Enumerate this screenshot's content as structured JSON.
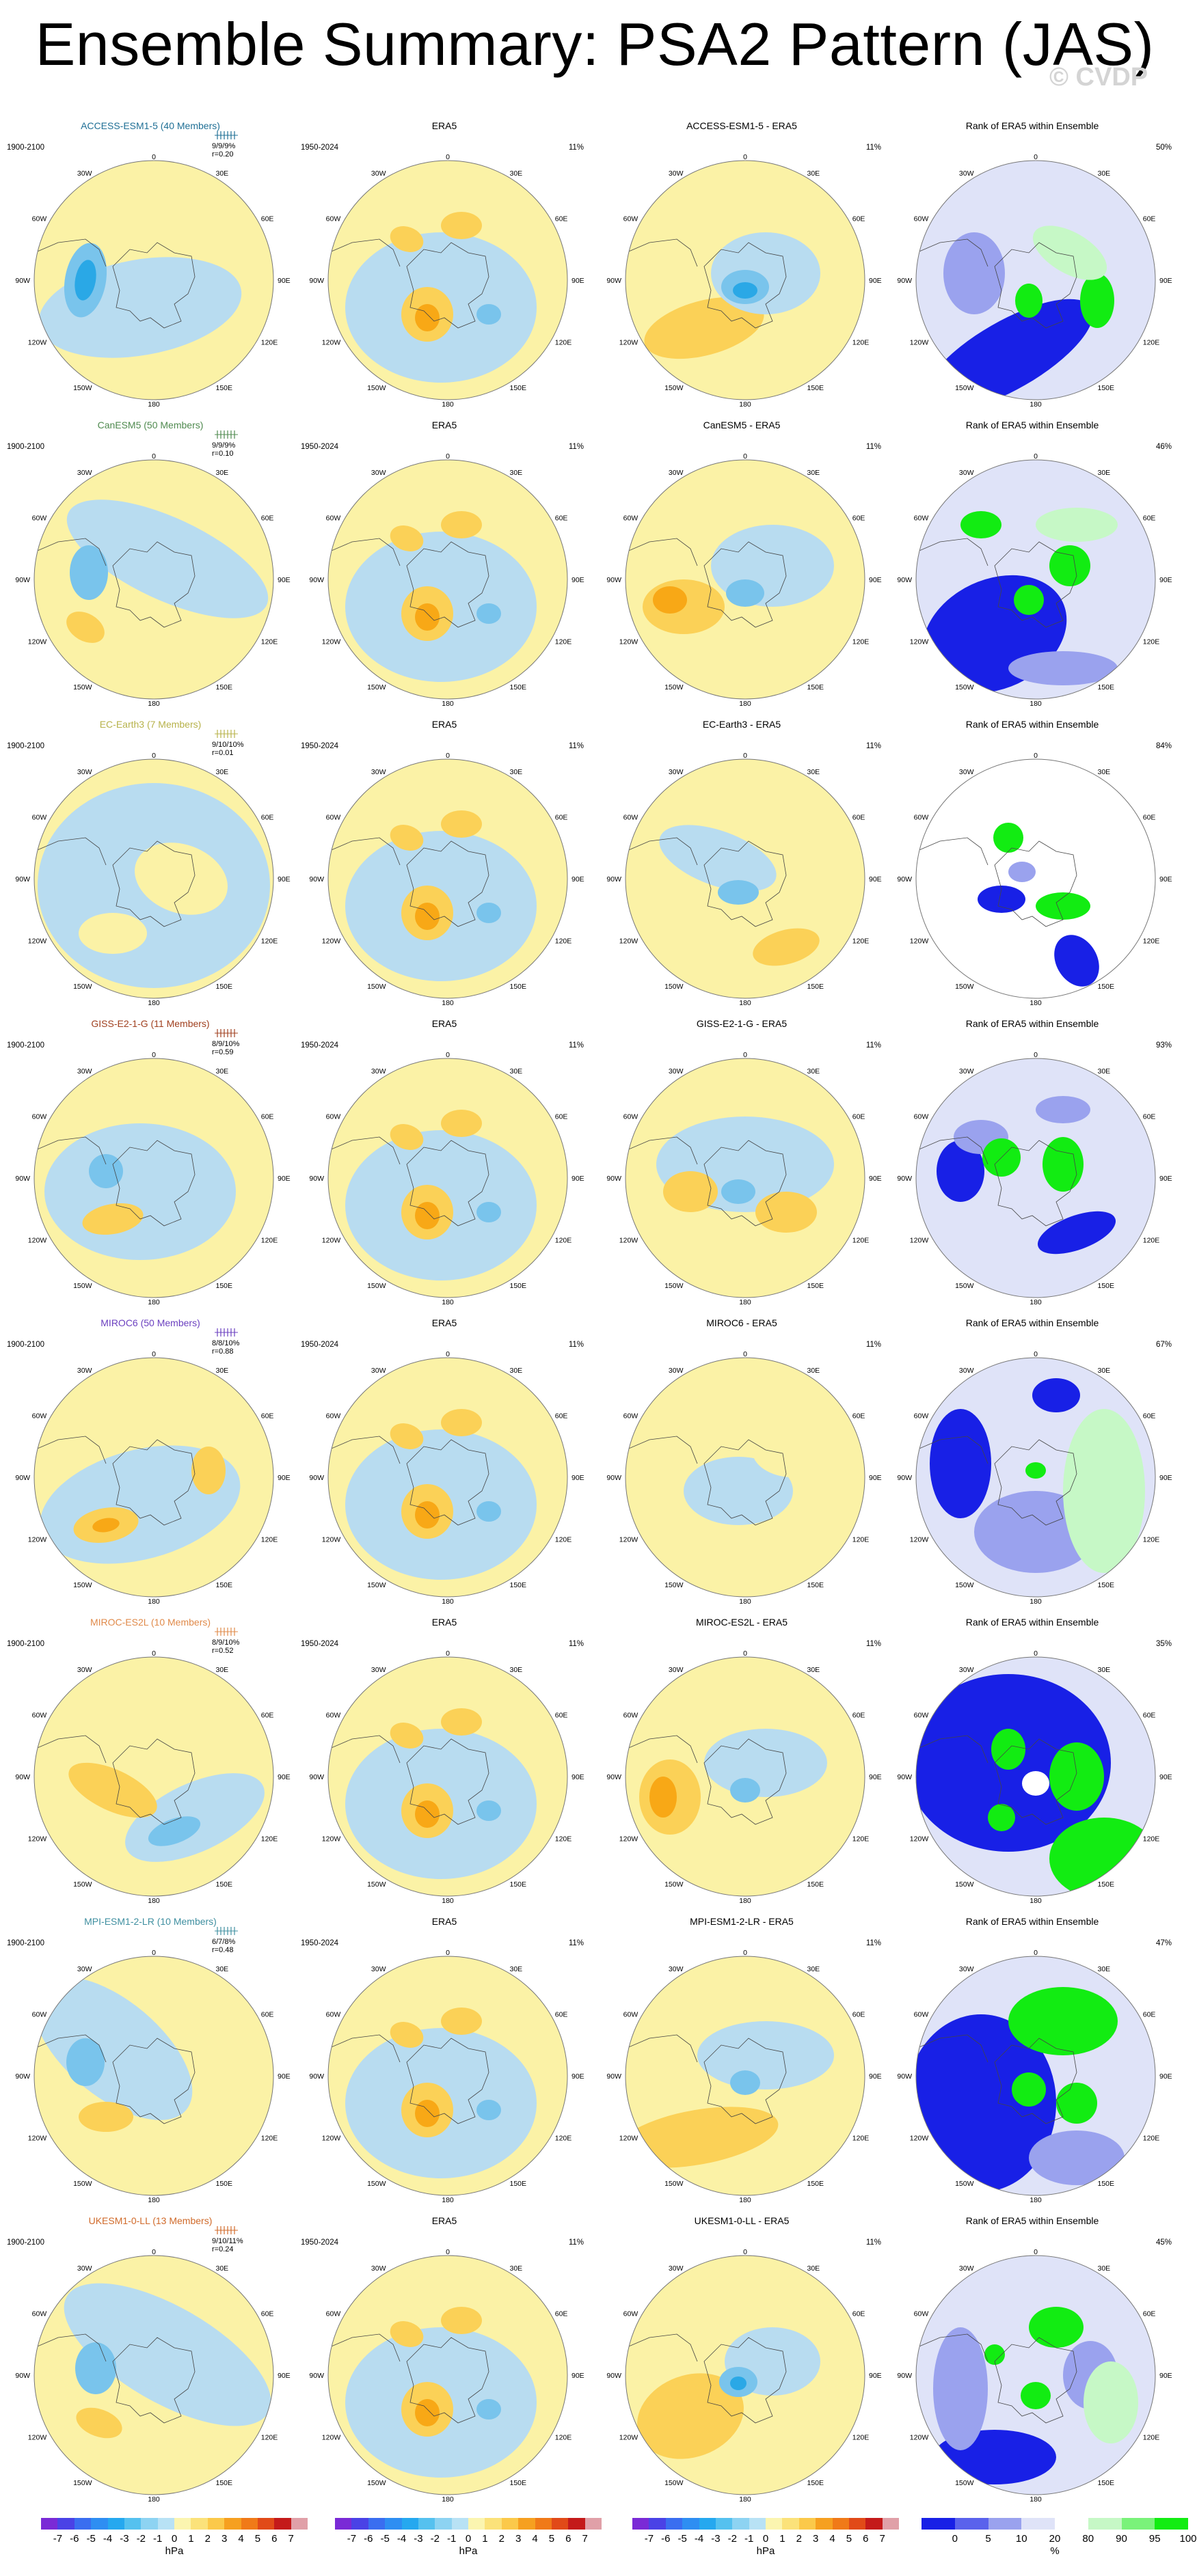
{
  "title": "Ensemble Summary: PSA2 Pattern (JAS)",
  "watermark": "© CVDP",
  "colors": {
    "neg_light": "#b8dcf0",
    "neg_mid": "#79c4ec",
    "neg_dark": "#2aa8e6",
    "pos_light": "#fbf2a6",
    "pos_mid": "#fbd157",
    "pos_dark": "#f8a816",
    "rank_dark": "#1820e6",
    "rank_mid": "#9aa2ee",
    "rank_light": "#dfe3f8",
    "rank_green": "#12ec12",
    "rank_green_light": "#c6f8c6"
  },
  "lon_labels": [
    "0",
    "30E",
    "60E",
    "90E",
    "120E",
    "150E",
    "180",
    "150W",
    "120W",
    "90W",
    "60W",
    "30W"
  ],
  "rows": [
    {
      "model": "ACCESS-ESM1-5 (40 Members)",
      "model_color": "#1f6f95",
      "short": "ACCESS-ESM1-5",
      "period": "1900-2100",
      "pct": "9/9/9%",
      "r": "r=0.20",
      "era_pct": "11%",
      "rank_pct": "50%"
    },
    {
      "model": "CanESM5 (50 Members)",
      "model_color": "#4f8a4f",
      "short": "CanESM5",
      "period": "1900-2100",
      "pct": "9/9/9%",
      "r": "r=0.10",
      "era_pct": "11%",
      "rank_pct": "46%"
    },
    {
      "model": "EC-Earth3 (7 Members)",
      "model_color": "#b7b24a",
      "short": "EC-Earth3",
      "period": "1900-2100",
      "pct": "9/10/10%",
      "r": "r=0.01",
      "era_pct": "11%",
      "rank_pct": "84%"
    },
    {
      "model": "GISS-E2-1-G (11 Members)",
      "model_color": "#a0401f",
      "short": "GISS-E2-1-G",
      "period": "1900-2100",
      "pct": "8/9/10%",
      "r": "r=0.59",
      "era_pct": "11%",
      "rank_pct": "93%"
    },
    {
      "model": "MIROC6 (50 Members)",
      "model_color": "#6a3fbf",
      "short": "MIROC6",
      "period": "1900-2100",
      "pct": "8/8/10%",
      "r": "r=0.88",
      "era_pct": "11%",
      "rank_pct": "67%"
    },
    {
      "model": "MIROC-ES2L (10 Members)",
      "model_color": "#e08a4a",
      "short": "MIROC-ES2L",
      "period": "1900-2100",
      "pct": "8/9/10%",
      "r": "r=0.52",
      "era_pct": "11%",
      "rank_pct": "35%"
    },
    {
      "model": "MPI-ESM1-2-LR (10 Members)",
      "model_color": "#3f8fa0",
      "short": "MPI-ESM1-2-LR",
      "period": "1900-2100",
      "pct": "6/7/8%",
      "r": "r=0.48",
      "era_pct": "11%",
      "rank_pct": "47%"
    },
    {
      "model": "UKESM1-0-LL (13 Members)",
      "model_color": "#d06a2a",
      "short": "UKESM1-0-LL",
      "period": "1900-2100",
      "pct": "9/10/11%",
      "r": "r=0.24",
      "era_pct": "11%",
      "rank_pct": "45%"
    }
  ],
  "era5": {
    "title": "ERA5",
    "period": "1950-2024",
    "diff_suffix": " - ERA5",
    "rank_title": "Rank of ERA5 within Ensemble"
  },
  "colorbars": {
    "hpa": {
      "ticks": [
        "-7",
        "-6",
        "-5",
        "-4",
        "-3",
        "-2",
        "-1",
        "0",
        "1",
        "2",
        "3",
        "4",
        "5",
        "6",
        "7"
      ],
      "unit": "hPa",
      "colors": [
        "#7a2ad6",
        "#4a42e6",
        "#3a6ef0",
        "#2e8ef2",
        "#25a8ef",
        "#55c1ef",
        "#8dd3f2",
        "#b8e2f5",
        "#fbf5b0",
        "#fbe27a",
        "#fbc94a",
        "#f6a020",
        "#f07a18",
        "#e14a18",
        "#c41a1a",
        "#e0a0a8"
      ]
    },
    "rank": {
      "ticks": [
        "0",
        "5",
        "10",
        "20",
        "80",
        "90",
        "95",
        "100"
      ],
      "unit": "%",
      "colors": [
        "#1820e6",
        "#5a62ec",
        "#9aa2ee",
        "#dfe3f8",
        "#ffffff",
        "#c6f8c6",
        "#7af27a",
        "#12ec12"
      ]
    }
  }
}
